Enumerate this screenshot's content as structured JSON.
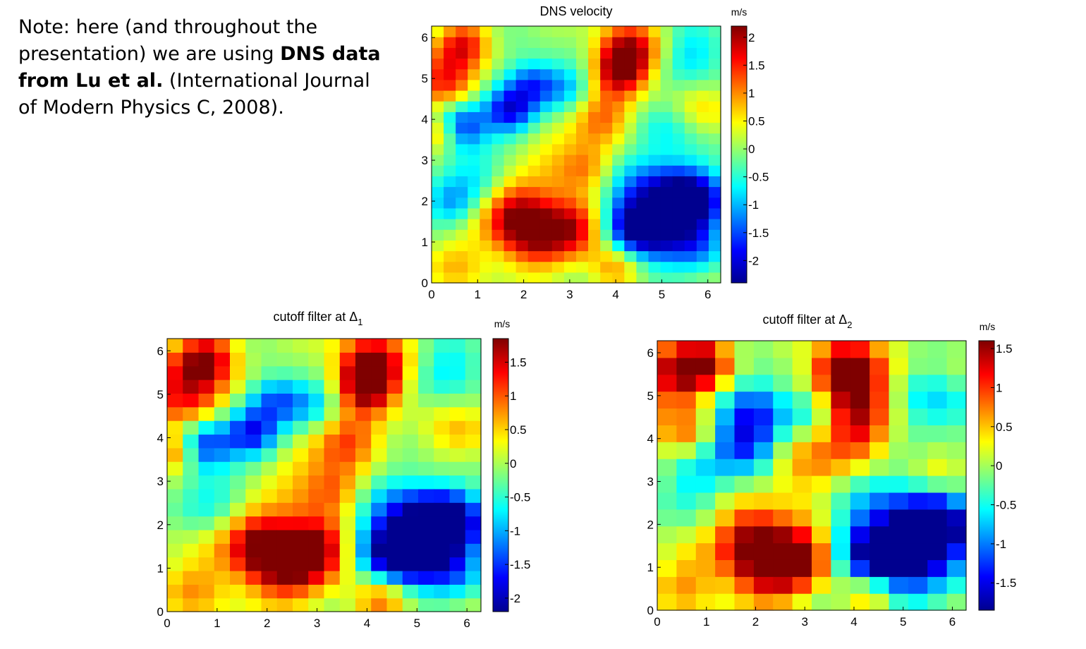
{
  "note": {
    "pre": "Note: here (and throughout the presentation) we are using ",
    "bold": "DNS data from Lu et al.",
    "post": " (International Journal of Modern Physics C, 2008)."
  },
  "colormap": [
    "#00008f",
    "#0000ff",
    "#007fff",
    "#00ffff",
    "#7fff7f",
    "#ffff00",
    "#ff7f00",
    "#ff0000",
    "#7f0000"
  ],
  "chart_data": [
    {
      "type": "heatmap",
      "title": "DNS velocity",
      "title_sub": "",
      "unit": "m/s",
      "xlim": [
        0,
        6.28
      ],
      "ylim": [
        0,
        6.28
      ],
      "xticks": [
        0,
        1,
        2,
        3,
        4,
        5,
        6
      ],
      "yticks": [
        0,
        1,
        2,
        3,
        4,
        5,
        6
      ],
      "clim": [
        -2.4,
        2.2
      ],
      "cticks": [
        -2,
        -1.5,
        -1,
        -0.5,
        0,
        0.5,
        1,
        1.5,
        2
      ],
      "cticklabels": [
        "-2",
        "-1.5",
        "-1",
        "-0.5",
        "0",
        "0.5",
        "1",
        "1.5",
        "2"
      ],
      "grid_size": 24,
      "blobs": [
        [
          2.2,
          1.2,
          0.6,
          1.9
        ],
        [
          3.2,
          1.4,
          0.5,
          1.6
        ],
        [
          1.8,
          1.8,
          0.5,
          1.4
        ],
        [
          5.0,
          1.8,
          0.8,
          -2.3
        ],
        [
          4.5,
          1.3,
          0.5,
          -1.6
        ],
        [
          5.6,
          2.0,
          0.5,
          -1.7
        ],
        [
          4.3,
          5.7,
          0.5,
          1.8
        ],
        [
          4.1,
          5.2,
          0.4,
          1.6
        ],
        [
          3.7,
          4.1,
          0.5,
          1.2
        ],
        [
          0.3,
          5.0,
          0.5,
          1.6
        ],
        [
          0.7,
          5.9,
          0.4,
          1.4
        ],
        [
          0.2,
          3.7,
          0.3,
          1.2
        ],
        [
          1.7,
          4.2,
          0.4,
          -2.0
        ],
        [
          0.6,
          3.9,
          0.4,
          -1.7
        ],
        [
          2.2,
          4.9,
          0.4,
          -1.5
        ],
        [
          2.6,
          3.0,
          0.5,
          0.7
        ],
        [
          1.0,
          2.6,
          0.5,
          -0.8
        ],
        [
          3.0,
          4.8,
          0.4,
          -0.9
        ],
        [
          5.7,
          5.6,
          0.5,
          -0.9
        ],
        [
          5.9,
          4.2,
          0.5,
          0.6
        ],
        [
          0.5,
          0.5,
          0.5,
          0.7
        ],
        [
          4.0,
          0.4,
          0.4,
          1.1
        ],
        [
          5.8,
          0.8,
          0.4,
          -0.7
        ],
        [
          3.4,
          2.8,
          0.4,
          0.9
        ],
        [
          5.2,
          3.8,
          0.5,
          -0.6
        ],
        [
          0.4,
          1.9,
          0.4,
          -0.9
        ]
      ]
    },
    {
      "type": "heatmap",
      "title": "cutoff filter at Δ",
      "title_sub": "1",
      "unit": "m/s",
      "xlim": [
        0,
        6.28
      ],
      "ylim": [
        0,
        6.28
      ],
      "xticks": [
        0,
        1,
        2,
        3,
        4,
        5,
        6
      ],
      "yticks": [
        0,
        1,
        2,
        3,
        4,
        5,
        6
      ],
      "clim": [
        -2.2,
        1.85
      ],
      "cticks": [
        -2,
        -1.5,
        -1,
        -0.5,
        0,
        0.5,
        1,
        1.5
      ],
      "cticklabels": [
        "-2",
        "-1.5",
        "-1",
        "-0.5",
        "0",
        "0.5",
        "1",
        "1.5"
      ],
      "grid_size": 20,
      "blobs": [
        [
          2.3,
          1.1,
          0.6,
          1.8
        ],
        [
          3.1,
          1.5,
          0.5,
          1.5
        ],
        [
          1.8,
          1.7,
          0.5,
          1.3
        ],
        [
          5.0,
          1.8,
          0.8,
          -2.1
        ],
        [
          4.6,
          1.3,
          0.5,
          -1.5
        ],
        [
          5.6,
          2.0,
          0.5,
          -1.6
        ],
        [
          4.1,
          5.7,
          0.5,
          1.7
        ],
        [
          4.0,
          5.2,
          0.4,
          1.5
        ],
        [
          3.6,
          4.0,
          0.5,
          1.1
        ],
        [
          0.4,
          5.1,
          0.6,
          1.5
        ],
        [
          0.8,
          5.9,
          0.4,
          1.3
        ],
        [
          0.2,
          3.7,
          0.3,
          1.1
        ],
        [
          1.7,
          4.1,
          0.4,
          -1.8
        ],
        [
          0.7,
          3.9,
          0.4,
          -1.5
        ],
        [
          2.2,
          4.9,
          0.4,
          -1.3
        ],
        [
          2.6,
          3.0,
          0.5,
          0.6
        ],
        [
          1.0,
          2.6,
          0.5,
          -0.7
        ],
        [
          3.0,
          4.8,
          0.4,
          -0.8
        ],
        [
          5.7,
          5.6,
          0.5,
          -0.8
        ],
        [
          5.9,
          4.1,
          0.5,
          0.5
        ],
        [
          0.5,
          0.6,
          0.5,
          0.7
        ],
        [
          4.3,
          0.3,
          0.4,
          1.1
        ],
        [
          5.8,
          0.8,
          0.4,
          -0.6
        ],
        [
          3.4,
          2.8,
          0.4,
          0.8
        ]
      ]
    },
    {
      "type": "heatmap",
      "title": "cutoff filter at Δ",
      "title_sub": "2",
      "unit": "m/s",
      "xlim": [
        0,
        6.28
      ],
      "ylim": [
        0,
        6.28
      ],
      "xticks": [
        0,
        1,
        2,
        3,
        4,
        5,
        6
      ],
      "yticks": [
        0,
        1,
        2,
        3,
        4,
        5,
        6
      ],
      "clim": [
        -1.85,
        1.6
      ],
      "cticks": [
        -1.5,
        -1,
        -0.5,
        0,
        0.5,
        1,
        1.5
      ],
      "cticklabels": [
        "-1.5",
        "-1",
        "-0.5",
        "0",
        "0.5",
        "1",
        "1.5"
      ],
      "grid_size": 16,
      "blobs": [
        [
          2.2,
          1.0,
          0.6,
          1.5
        ],
        [
          3.0,
          1.3,
          0.5,
          1.3
        ],
        [
          1.9,
          1.8,
          0.5,
          1.1
        ],
        [
          5.0,
          1.6,
          0.9,
          -1.8
        ],
        [
          5.7,
          1.9,
          0.5,
          -1.3
        ],
        [
          4.5,
          1.2,
          0.5,
          -1.1
        ],
        [
          4.0,
          5.2,
          0.6,
          1.4
        ],
        [
          3.8,
          5.7,
          0.4,
          1.2
        ],
        [
          4.1,
          4.1,
          0.5,
          1.0
        ],
        [
          0.4,
          5.5,
          0.6,
          1.3
        ],
        [
          1.0,
          5.8,
          0.4,
          1.0
        ],
        [
          0.6,
          4.1,
          0.4,
          0.7
        ],
        [
          1.8,
          3.9,
          0.5,
          -1.5
        ],
        [
          2.0,
          4.8,
          0.5,
          -1.0
        ],
        [
          0.8,
          3.0,
          0.5,
          -0.6
        ],
        [
          2.9,
          3.4,
          0.6,
          0.7
        ],
        [
          5.6,
          4.8,
          0.6,
          -0.7
        ],
        [
          5.8,
          3.3,
          0.4,
          0.5
        ],
        [
          0.5,
          0.7,
          0.5,
          0.6
        ],
        [
          4.3,
          0.4,
          0.4,
          0.9
        ],
        [
          3.2,
          4.7,
          0.4,
          -0.6
        ]
      ]
    }
  ]
}
